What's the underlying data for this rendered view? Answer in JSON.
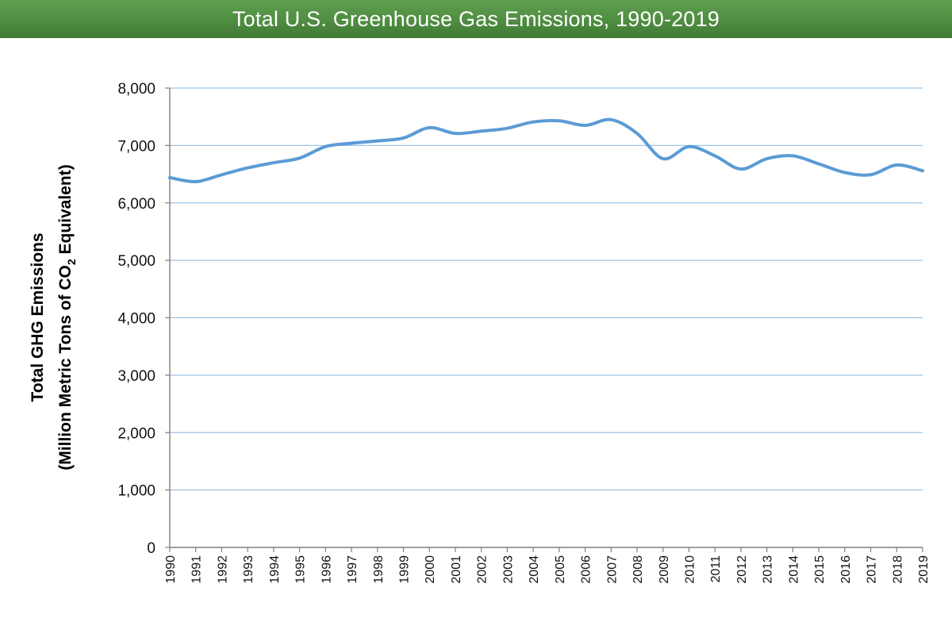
{
  "chart_data": {
    "type": "line",
    "title": "Total U.S. Greenhouse Gas Emissions, 1990-2019",
    "ylabel_line1": "Total GHG  Emissions",
    "ylabel_line2_pre": "(Million Metric Tons of CO",
    "ylabel_line2_sub": "2",
    "ylabel_line2_post": " Equivalent)",
    "xlabel": "",
    "ylim": [
      0,
      8000
    ],
    "yticks": [
      0,
      1000,
      2000,
      3000,
      4000,
      5000,
      6000,
      7000,
      8000
    ],
    "ytick_labels": [
      "0",
      "1,000",
      "2,000",
      "3,000",
      "4,000",
      "5,000",
      "6,000",
      "7,000",
      "8,000"
    ],
    "categories": [
      "1990",
      "1991",
      "1992",
      "1993",
      "1994",
      "1995",
      "1996",
      "1997",
      "1998",
      "1999",
      "2000",
      "2001",
      "2002",
      "2003",
      "2004",
      "2005",
      "2006",
      "2007",
      "2008",
      "2009",
      "2010",
      "2011",
      "2012",
      "2013",
      "2014",
      "2015",
      "2016",
      "2017",
      "2018",
      "2019"
    ],
    "series": [
      {
        "name": "Total GHG Emissions",
        "color": "#5b9bd5",
        "values": [
          6440,
          6370,
          6490,
          6610,
          6700,
          6780,
          6980,
          7040,
          7080,
          7130,
          7310,
          7210,
          7250,
          7300,
          7410,
          7430,
          7350,
          7450,
          7210,
          6770,
          6980,
          6820,
          6590,
          6770,
          6820,
          6680,
          6530,
          6490,
          6660,
          6560
        ]
      }
    ],
    "grid": true,
    "gridline_color": "#9dc3e6",
    "axis_color": "#808080"
  }
}
